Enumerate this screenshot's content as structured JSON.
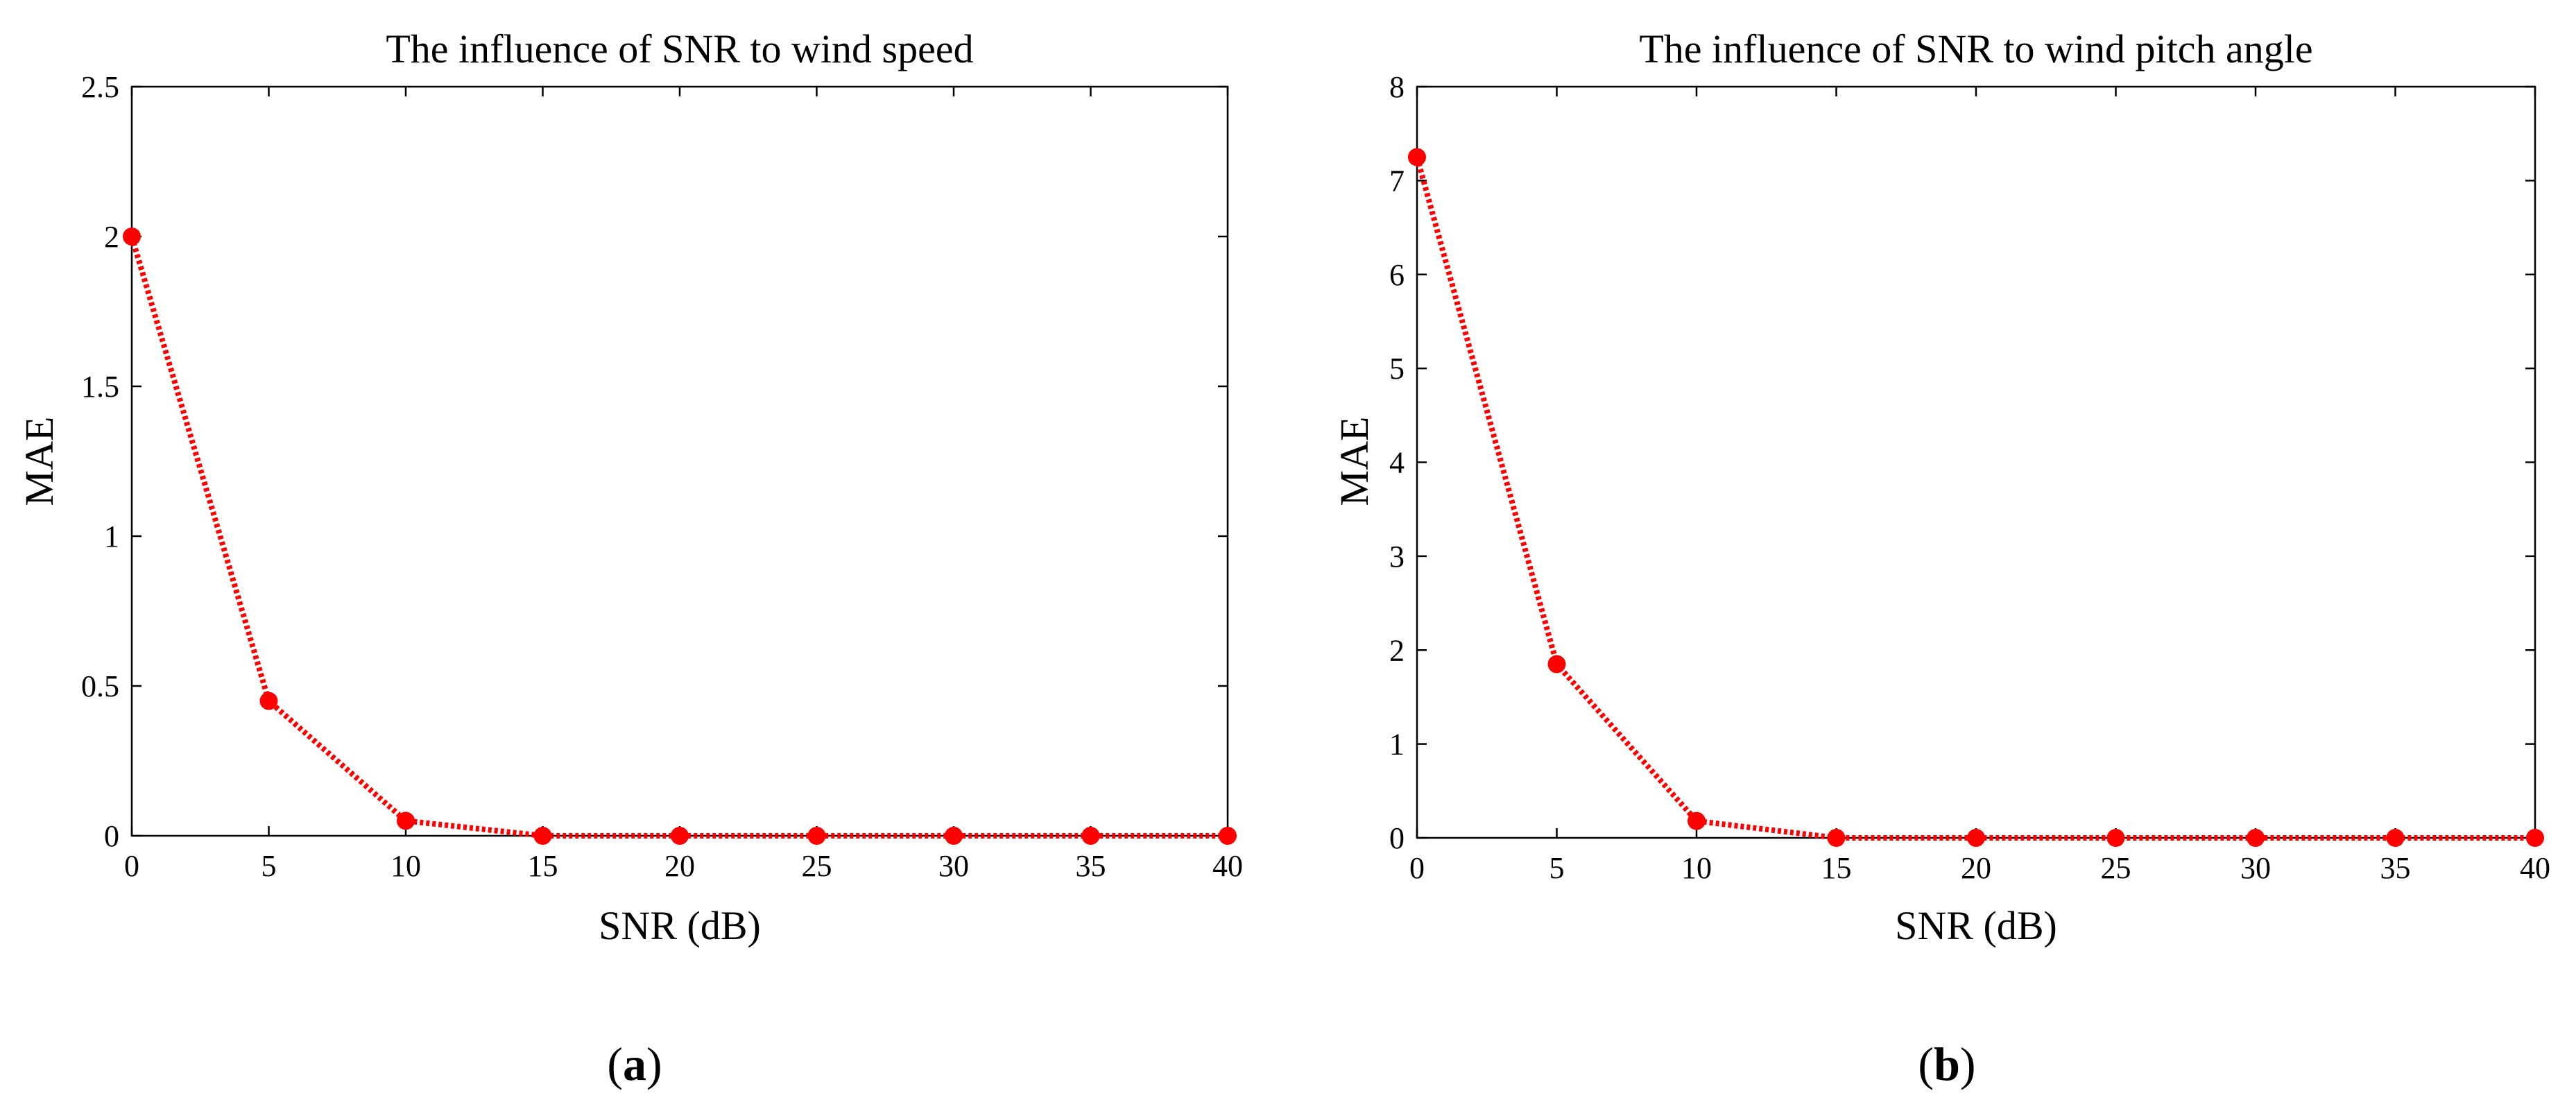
{
  "chart_data": [
    {
      "type": "line",
      "panel": "a",
      "title": "The influence of SNR to wind speed",
      "xlabel": "SNR (dB)",
      "ylabel": "MAE",
      "xlim": [
        0,
        40
      ],
      "ylim": [
        0,
        2.5
      ],
      "xticks": [
        0,
        5,
        10,
        15,
        20,
        25,
        30,
        35,
        40
      ],
      "xtick_labels": [
        "0",
        "5",
        "10",
        "15",
        "20",
        "25",
        "30",
        "35",
        "40"
      ],
      "yticks": [
        0,
        0.5,
        1,
        1.5,
        2,
        2.5
      ],
      "ytick_labels": [
        "0",
        "0.5",
        "1",
        "1.5",
        "2",
        "2.5"
      ],
      "grid": false,
      "legend": "none",
      "series": [
        {
          "name": "MAE",
          "color": "#ff0000",
          "line_style": "dotted",
          "marker": "circle",
          "x": [
            0,
            5,
            10,
            15,
            20,
            25,
            30,
            35,
            40
          ],
          "values": [
            2.0,
            0.45,
            0.05,
            0.0,
            0.0,
            0.0,
            0.0,
            0.0,
            0.0
          ]
        }
      ]
    },
    {
      "type": "line",
      "panel": "b",
      "title": "The influence of SNR to wind pitch angle",
      "xlabel": "SNR (dB)",
      "ylabel": "MAE",
      "xlim": [
        0,
        40
      ],
      "ylim": [
        0,
        8
      ],
      "xticks": [
        0,
        5,
        10,
        15,
        20,
        25,
        30,
        35,
        40
      ],
      "xtick_labels": [
        "0",
        "5",
        "10",
        "15",
        "20",
        "25",
        "30",
        "35",
        "40"
      ],
      "yticks": [
        0,
        1,
        2,
        3,
        4,
        5,
        6,
        7,
        8
      ],
      "ytick_labels": [
        "0",
        "1",
        "2",
        "3",
        "4",
        "5",
        "6",
        "7",
        "8"
      ],
      "grid": false,
      "legend": "none",
      "series": [
        {
          "name": "MAE",
          "color": "#ff0000",
          "line_style": "dotted",
          "marker": "circle",
          "x": [
            0,
            5,
            10,
            15,
            20,
            25,
            30,
            35,
            40
          ],
          "values": [
            7.25,
            1.85,
            0.18,
            0.0,
            0.0,
            0.0,
            0.0,
            0.0,
            0.0
          ]
        }
      ]
    }
  ],
  "panel_labels": {
    "a": {
      "open": "(",
      "letter": "a",
      "close": ")"
    },
    "b": {
      "open": "(",
      "letter": "b",
      "close": ")"
    }
  }
}
